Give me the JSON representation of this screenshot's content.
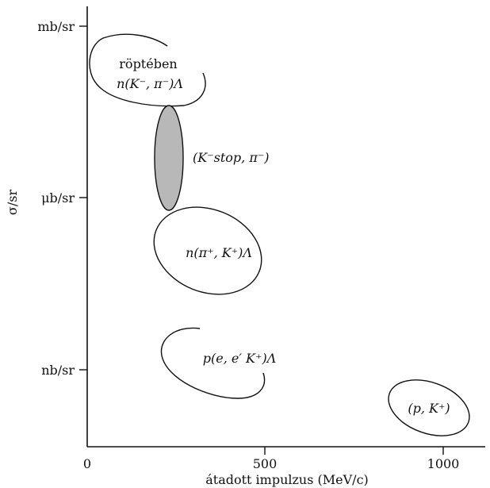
{
  "chart_data": {
    "type": "scatter",
    "xlabel": "átadott impulzus (MeV/c)",
    "ylabel": "σ/sr",
    "x_ticks": [
      0,
      500,
      1000
    ],
    "x_tick_labels": [
      "0",
      "500",
      "1000"
    ],
    "y_tick_labels": [
      "nb/sr",
      "μb/sr",
      "mb/sr"
    ],
    "xlim": [
      0,
      1150
    ],
    "regions": [
      {
        "label_lines": [
          "röptében",
          "n(K⁻, π⁻)Λ"
        ],
        "x_center": 165,
        "y_level": 2.75,
        "filled": false
      },
      {
        "label_lines": [
          "(K⁻stop, π⁻)"
        ],
        "x_center": 235,
        "y_level": 2.2,
        "filled": true,
        "fill": "#b8b8b8"
      },
      {
        "label_lines": [
          "n(π⁺, K⁺)Λ"
        ],
        "x_center": 340,
        "y_level": 1.62,
        "filled": false
      },
      {
        "label_lines": [
          "p(e, e′ K⁺)Λ"
        ],
        "x_center": 340,
        "y_level": 0.95,
        "filled": false
      },
      {
        "label_lines": [
          "(p, K⁺)"
        ],
        "x_center": 970,
        "y_level": 0.5,
        "filled": false
      }
    ]
  }
}
